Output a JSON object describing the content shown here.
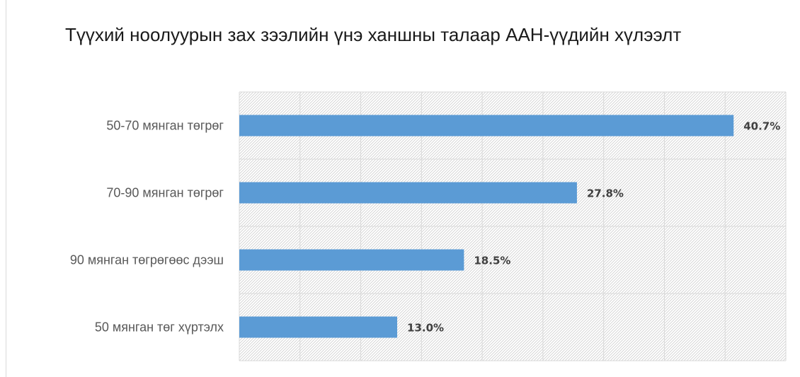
{
  "chart_data": {
    "type": "bar",
    "orientation": "horizontal",
    "title": "Түүхий ноолуурын зах зээлийн үнэ ханшны талаар ААН-үүдийн хүлээлт",
    "categories": [
      "50-70 мянган төгрөг",
      "70-90 мянган төгрөг",
      "90 мянган төгрөгөөс дээш",
      "50 мянган төг хүртэлх"
    ],
    "values": [
      40.7,
      27.8,
      18.5,
      13.0
    ],
    "value_labels": [
      "40.7%",
      "27.8%",
      "18.5%",
      "13.0%"
    ],
    "xlim": [
      0,
      45
    ],
    "grid": true,
    "legend": "none",
    "bar_color": "#5b9bd5",
    "grid_color": "#d9d9d9",
    "plot_fill": "hatched"
  }
}
